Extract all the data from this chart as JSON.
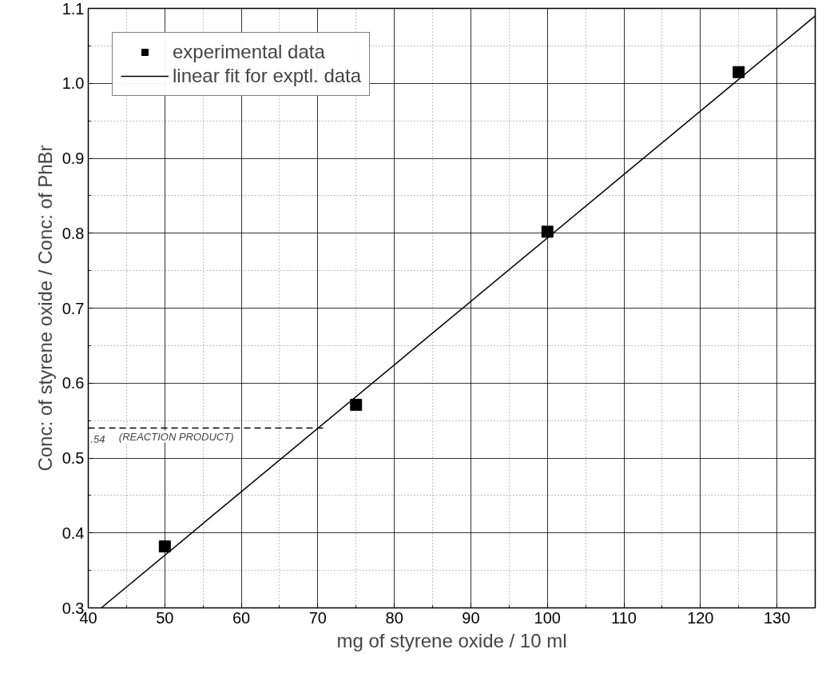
{
  "chart_data": {
    "type": "scatter",
    "xlabel": "mg of styrene oxide / 10 ml",
    "ylabel": "Conc: of styrene oxide / Conc: of PhBr",
    "series": [
      {
        "name": "experimental data",
        "color": "#000000",
        "marker": "square",
        "x": [
          50,
          75,
          100,
          125
        ],
        "values": [
          0.382,
          0.571,
          0.802,
          1.015
        ]
      },
      {
        "name": "linear fit for exptl. data",
        "type": "line",
        "color": "#000000",
        "line_style": "solid",
        "x": [
          41.7,
          135
        ],
        "values": [
          0.3,
          1.09
        ]
      },
      {
        "type": "line",
        "color": "#000000",
        "line_style": "dashed",
        "x": [
          40,
          71
        ],
        "values": [
          0.54,
          0.54
        ]
      }
    ],
    "annotations": [
      {
        "text": ".54",
        "x": 40.3,
        "y": 0.54
      },
      {
        "text": "(REACTION PRODUCT)",
        "x": 44,
        "y": 0.54
      }
    ],
    "xlim": [
      40,
      135
    ],
    "xticks": [
      40,
      50,
      60,
      70,
      80,
      90,
      100,
      110,
      120,
      130
    ],
    "ylim": [
      0.3,
      1.1
    ],
    "yticks": [
      0.3,
      0.4,
      0.5,
      0.6,
      0.7,
      0.8,
      0.9,
      {
        "value": 1.0,
        "label": "1.0"
      },
      1.1
    ],
    "grid": true,
    "legend": "top left"
  }
}
